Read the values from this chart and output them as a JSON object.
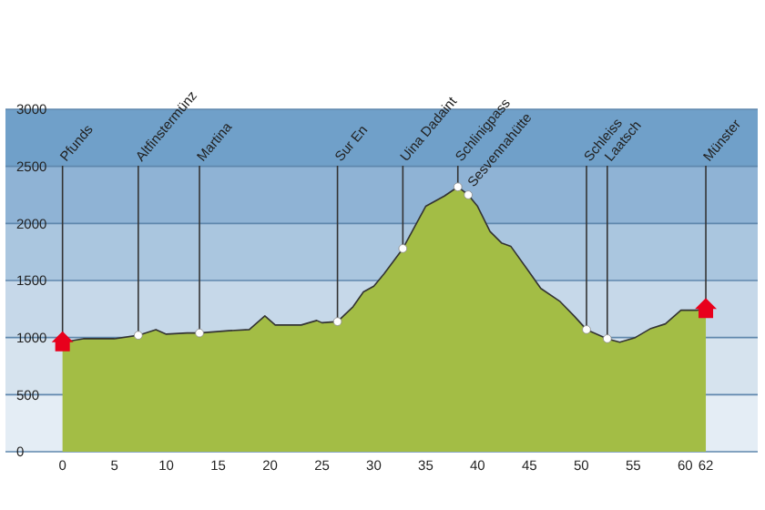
{
  "chart_data": {
    "type": "area",
    "x": [
      0,
      2,
      5,
      7.3,
      9,
      10,
      12,
      13.2,
      16,
      18,
      19.5,
      20.5,
      23,
      24.5,
      25,
      26.5,
      28,
      29,
      30,
      31,
      32.8,
      35,
      35.6,
      36.8,
      38.1,
      39.1,
      40,
      41.2,
      42.3,
      43.2,
      44.7,
      46.1,
      47.9,
      49.3,
      50.5,
      52.5,
      53.7,
      55.2,
      56.7,
      58.1,
      59.6,
      61.1,
      62
    ],
    "series": [
      {
        "color": "#a3bd45",
        "values": [
          960,
          990,
          990,
          1020,
          1070,
          1030,
          1040,
          1040,
          1060,
          1070,
          1190,
          1110,
          1110,
          1150,
          1130,
          1140,
          1270,
          1400,
          1450,
          1560,
          1780,
          2150,
          2180,
          2240,
          2320,
          2250,
          2150,
          1930,
          1830,
          1800,
          1610,
          1430,
          1320,
          1190,
          1070,
          990,
          960,
          1000,
          1080,
          1120,
          1240,
          1240,
          1250
        ]
      }
    ],
    "xlim": [
      -5.5,
      67
    ],
    "ylim": [
      0,
      3000
    ],
    "xticks": [
      0,
      5,
      10,
      15,
      20,
      25,
      30,
      35,
      40,
      45,
      50,
      55,
      60,
      62
    ],
    "yticks": [
      0,
      500,
      1000,
      1500,
      2000,
      2500,
      3000
    ],
    "grid": "y",
    "bands": [
      {
        "axis": "y",
        "from": 0,
        "to": 500,
        "color": "#e4edf5"
      },
      {
        "axis": "y",
        "from": 500,
        "to": 1000,
        "color": "#d6e3ee"
      },
      {
        "axis": "y",
        "from": 1000,
        "to": 1500,
        "color": "#c6d8e9"
      },
      {
        "axis": "y",
        "from": 1500,
        "to": 2000,
        "color": "#aac6df"
      },
      {
        "axis": "y",
        "from": 2000,
        "to": 2500,
        "color": "#8fb3d5"
      },
      {
        "axis": "y",
        "from": 2500,
        "to": 3000,
        "color": "#70a0c9"
      }
    ],
    "annotations": [
      {
        "text": "Pfunds",
        "x": 0,
        "y": 960
      },
      {
        "text": "Altfinstermünz",
        "x": 7.3,
        "y": 1020
      },
      {
        "text": "Martina",
        "x": 13.2,
        "y": 1040
      },
      {
        "text": "Sur En",
        "x": 26.5,
        "y": 1140
      },
      {
        "text": "Uina Dadaint",
        "x": 32.8,
        "y": 1780
      },
      {
        "text": "Schlinigpass",
        "x": 38.1,
        "y": 2320
      },
      {
        "text": "Sesvennahütte",
        "x": 39.1,
        "y": 2250
      },
      {
        "text": "Schleiss",
        "x": 50.5,
        "y": 1070
      },
      {
        "text": "Laatsch",
        "x": 52.5,
        "y": 990
      },
      {
        "text": "Münster",
        "x": 62,
        "y": 1250
      }
    ]
  }
}
